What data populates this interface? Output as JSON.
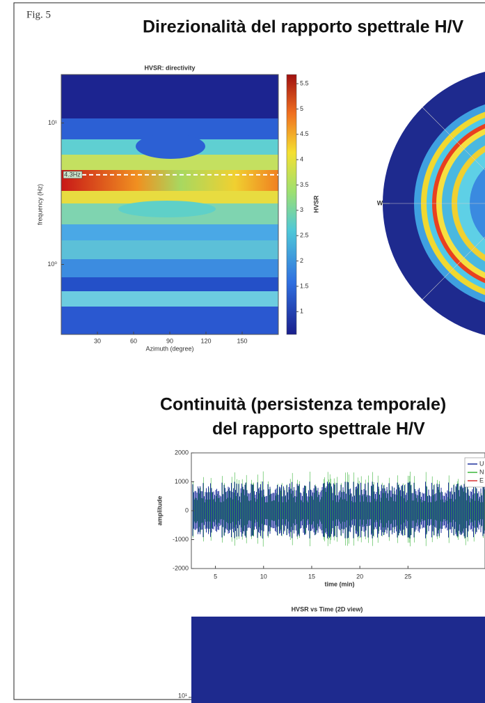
{
  "fig_label": "Fig. 5",
  "title1": "Direzionalità del rapporto spettrale H/V",
  "chart_data": [
    {
      "type": "heatmap",
      "title": "HVSR: directivity",
      "xlabel": "Azimuth (degree)",
      "ylabel": "frequency (Hz)",
      "xlim": [
        0,
        180
      ],
      "xticks": [
        30,
        60,
        90,
        120,
        150
      ],
      "ylim": [
        0.32,
        22
      ],
      "log_y": true,
      "yticks": [
        {
          "value": 10,
          "label": "10¹"
        },
        {
          "value": 1,
          "label": "10⁰"
        }
      ],
      "annotation": {
        "value": 4.3,
        "label": "4.3Hz"
      },
      "colorbar": {
        "label": "HVSR",
        "lim": [
          0.55,
          5.68
        ],
        "ticks": [
          1,
          1.5,
          2,
          2.5,
          3,
          3.5,
          4,
          4.5,
          5,
          5.5
        ]
      }
    },
    {
      "type": "polar",
      "labels": [
        "W"
      ]
    },
    {
      "type": "line",
      "ylabel": "amplitude",
      "xlabel": "time (min)",
      "xlim": [
        2.5,
        33
      ],
      "xticks": [
        5,
        10,
        15,
        20,
        25
      ],
      "ylim": [
        -2000,
        2000
      ],
      "yticks": [
        -2000,
        -1000,
        0,
        1000,
        2000
      ],
      "series": [
        {
          "name": "U",
          "color": "#1c2f9c"
        },
        {
          "name": "N",
          "color": "#3bb53b"
        },
        {
          "name": "E",
          "color": "#d93030"
        }
      ]
    },
    {
      "type": "heatmap2d",
      "title": "HVSR vs Time (2D view)",
      "log_y": true,
      "ylim": [
        1,
        13
      ],
      "yticks": [
        {
          "value": 10,
          "label": "10¹"
        }
      ]
    }
  ],
  "title2": [
    "Continuità (persistenza temporale)",
    "del rapporto spettrale H/V"
  ]
}
